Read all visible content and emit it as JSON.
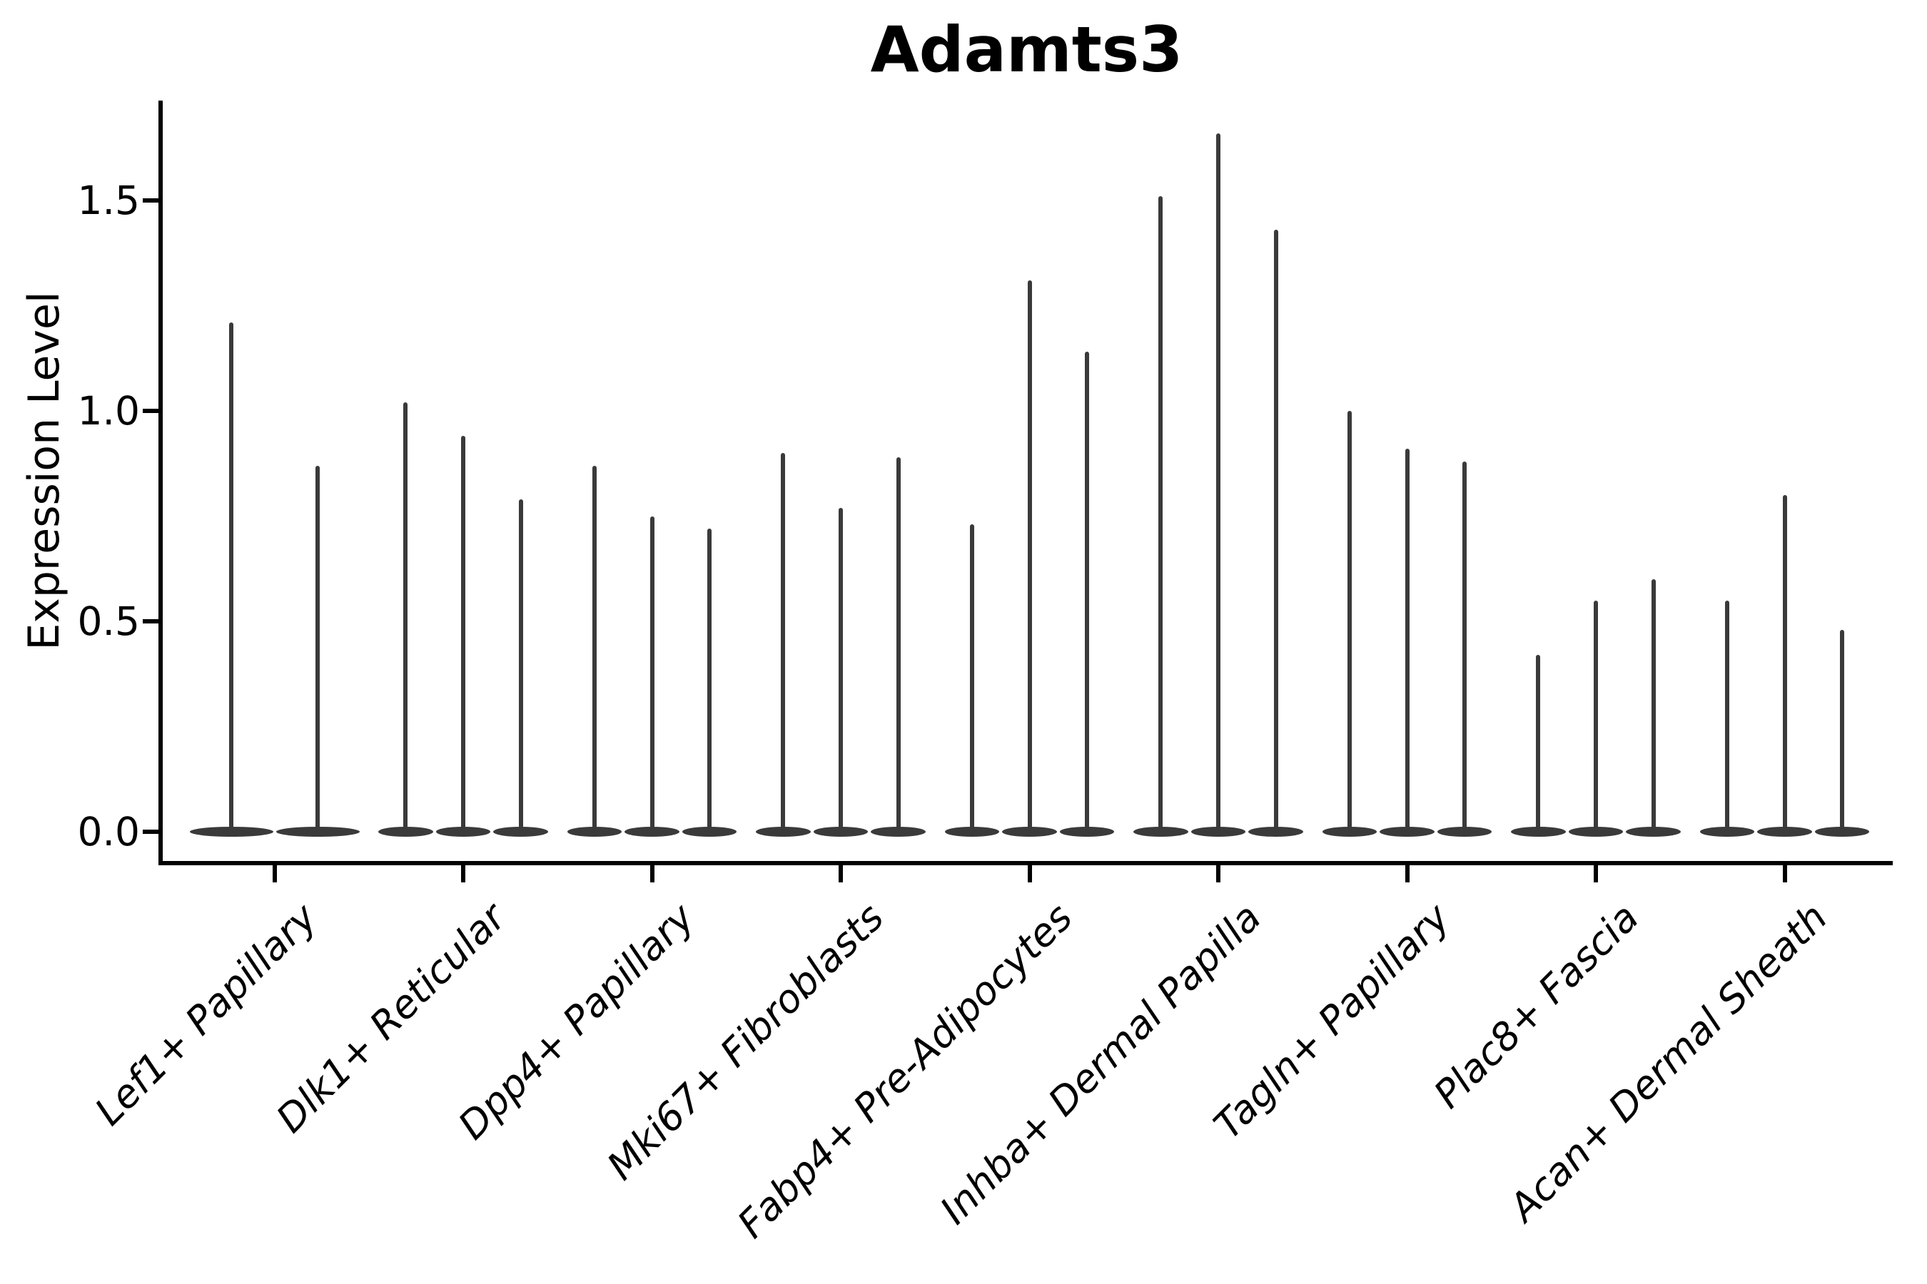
{
  "chart_data": {
    "type": "violin",
    "title": "Adamts3",
    "ylabel": "Expression Level",
    "xlabel": "",
    "ylim": [
      0,
      1.73
    ],
    "yticks": [
      0.0,
      0.5,
      1.0,
      1.5
    ],
    "ytick_labels": [
      "0.0",
      "0.5",
      "1.0",
      "1.5"
    ],
    "grid": false,
    "legend": "none",
    "x_tick_label_rotation_deg": 45,
    "x_tick_label_style": "italic",
    "violin_color": "#3a3a3a",
    "axis_color": "#000000",
    "description": "Violin plot of Adamts3 expression per fibroblast cluster; each cluster contains 2-3 very narrow violins whose density mass sits at 0 with a thin spike rising to the maximum expression value.",
    "categories": [
      "Lef1+ Papillary",
      "Dlk1+ Reticular",
      "Dpp4+ Papillary",
      "Mki67+ Fibroblasts",
      "Fabp4+ Pre-Adipocytes",
      "Inhba+ Dermal Papilla",
      "Tagln+ Papillary",
      "Plac8+ Fascia",
      "Acan+ Dermal Sheath"
    ],
    "groups": [
      {
        "category": "Lef1+ Papillary",
        "spike_maxima": [
          1.21,
          0.87
        ]
      },
      {
        "category": "Dlk1+ Reticular",
        "spike_maxima": [
          1.02,
          0.94,
          0.79
        ]
      },
      {
        "category": "Dpp4+ Papillary",
        "spike_maxima": [
          0.87,
          0.75,
          0.72
        ]
      },
      {
        "category": "Mki67+ Fibroblasts",
        "spike_maxima": [
          0.9,
          0.77,
          0.89
        ]
      },
      {
        "category": "Fabp4+ Pre-Adipocytes",
        "spike_maxima": [
          0.73,
          1.31,
          1.14
        ]
      },
      {
        "category": "Inhba+ Dermal Papilla",
        "spike_maxima": [
          1.51,
          1.66,
          1.43
        ]
      },
      {
        "category": "Tagln+ Papillary",
        "spike_maxima": [
          1.0,
          0.91,
          0.88
        ]
      },
      {
        "category": "Plac8+ Fascia",
        "spike_maxima": [
          0.42,
          0.55,
          0.6
        ]
      },
      {
        "category": "Acan+ Dermal Sheath",
        "spike_maxima": [
          0.55,
          0.8,
          0.48
        ]
      }
    ]
  }
}
